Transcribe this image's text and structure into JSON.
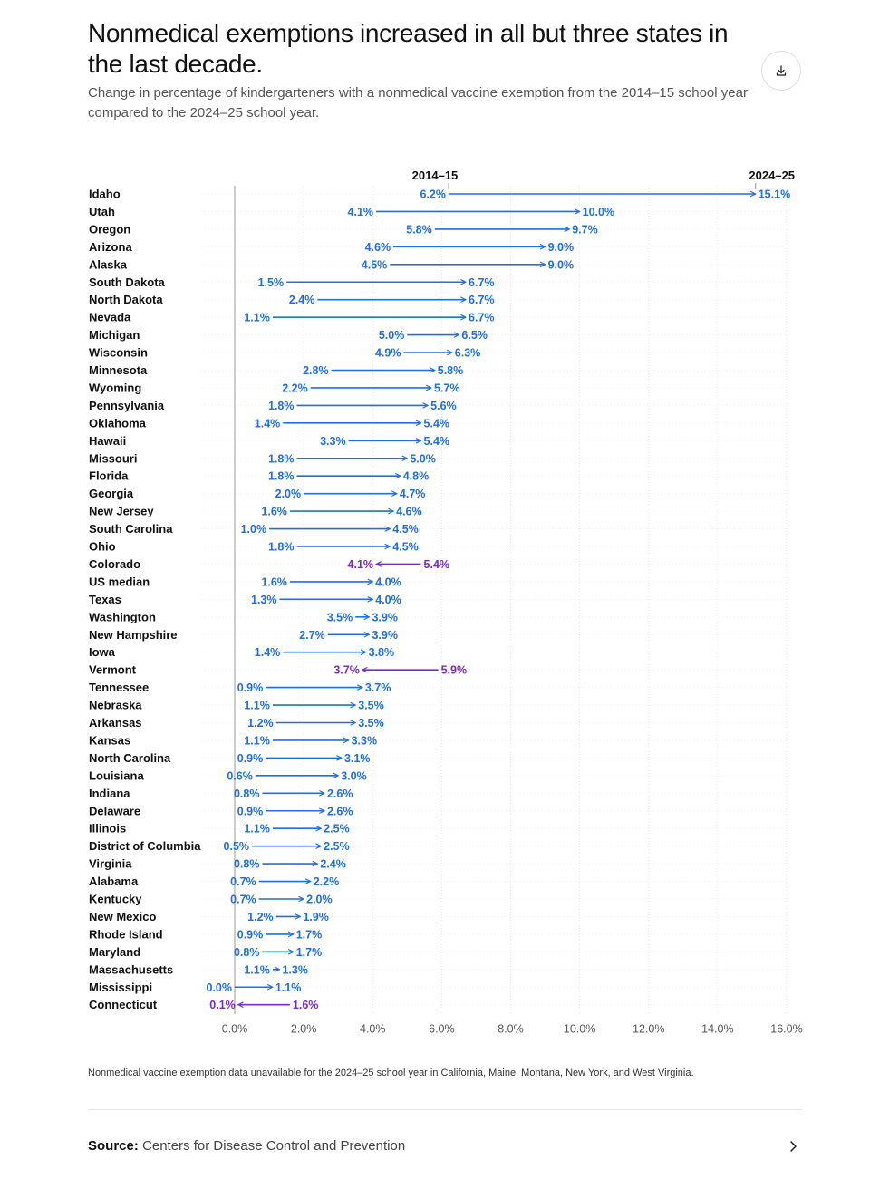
{
  "header": {
    "title": "Nonmedical exemptions increased in all but three states in the last decade.",
    "subtitle": "Change in percentage of kindergarteners with a nonmedical vaccine exemption from the 2014–15 school year compared to the 2024–25 school year.",
    "download_icon": "download-icon"
  },
  "colors": {
    "increase": "#1F6FE0",
    "decrease": "#7B2AC4",
    "axis": "#BBBBBB",
    "grid": "#E6E6E6"
  },
  "chart_data": {
    "type": "dumbbell",
    "start_label": "2014–15",
    "end_label": "2024–25",
    "xlim": [
      0,
      16
    ],
    "ticks": [
      0,
      2,
      4,
      6,
      8,
      10,
      12,
      14,
      16
    ],
    "tick_labels": [
      "0.0%",
      "2.0%",
      "4.0%",
      "6.0%",
      "8.0%",
      "10.0%",
      "12.0%",
      "14.0%",
      "16.0%"
    ],
    "rows": [
      {
        "name": "Idaho",
        "start": 6.2,
        "end": 15.1
      },
      {
        "name": "Utah",
        "start": 4.1,
        "end": 10.0
      },
      {
        "name": "Oregon",
        "start": 5.8,
        "end": 9.7
      },
      {
        "name": "Arizona",
        "start": 4.6,
        "end": 9.0
      },
      {
        "name": "Alaska",
        "start": 4.5,
        "end": 9.0
      },
      {
        "name": "South Dakota",
        "start": 1.5,
        "end": 6.7
      },
      {
        "name": "North Dakota",
        "start": 2.4,
        "end": 6.7
      },
      {
        "name": "Nevada",
        "start": 1.1,
        "end": 6.7
      },
      {
        "name": "Michigan",
        "start": 5.0,
        "end": 6.5
      },
      {
        "name": "Wisconsin",
        "start": 4.9,
        "end": 6.3
      },
      {
        "name": "Minnesota",
        "start": 2.8,
        "end": 5.8
      },
      {
        "name": "Wyoming",
        "start": 2.2,
        "end": 5.7
      },
      {
        "name": "Pennsylvania",
        "start": 1.8,
        "end": 5.6
      },
      {
        "name": "Oklahoma",
        "start": 1.4,
        "end": 5.4
      },
      {
        "name": "Hawaii",
        "start": 3.3,
        "end": 5.4
      },
      {
        "name": "Missouri",
        "start": 1.8,
        "end": 5.0
      },
      {
        "name": "Florida",
        "start": 1.8,
        "end": 4.8
      },
      {
        "name": "Georgia",
        "start": 2.0,
        "end": 4.7
      },
      {
        "name": "New Jersey",
        "start": 1.6,
        "end": 4.6
      },
      {
        "name": "South Carolina",
        "start": 1.0,
        "end": 4.5
      },
      {
        "name": "Ohio",
        "start": 1.8,
        "end": 4.5
      },
      {
        "name": "Colorado",
        "start": 5.4,
        "end": 4.1
      },
      {
        "name": "US median",
        "start": 1.6,
        "end": 4.0
      },
      {
        "name": "Texas",
        "start": 1.3,
        "end": 4.0
      },
      {
        "name": "Washington",
        "start": 3.5,
        "end": 3.9
      },
      {
        "name": "New Hampshire",
        "start": 2.7,
        "end": 3.9
      },
      {
        "name": "Iowa",
        "start": 1.4,
        "end": 3.8
      },
      {
        "name": "Vermont",
        "start": 5.9,
        "end": 3.7
      },
      {
        "name": "Tennessee",
        "start": 0.9,
        "end": 3.7
      },
      {
        "name": "Nebraska",
        "start": 1.1,
        "end": 3.5
      },
      {
        "name": "Arkansas",
        "start": 1.2,
        "end": 3.5
      },
      {
        "name": "Kansas",
        "start": 1.1,
        "end": 3.3
      },
      {
        "name": "North Carolina",
        "start": 0.9,
        "end": 3.1
      },
      {
        "name": "Louisiana",
        "start": 0.6,
        "end": 3.0
      },
      {
        "name": "Indiana",
        "start": 0.8,
        "end": 2.6
      },
      {
        "name": "Delaware",
        "start": 0.9,
        "end": 2.6
      },
      {
        "name": "Illinois",
        "start": 1.1,
        "end": 2.5
      },
      {
        "name": "District of Columbia",
        "start": 0.5,
        "end": 2.5
      },
      {
        "name": "Virginia",
        "start": 0.8,
        "end": 2.4
      },
      {
        "name": "Alabama",
        "start": 0.7,
        "end": 2.2
      },
      {
        "name": "Kentucky",
        "start": 0.7,
        "end": 2.0
      },
      {
        "name": "New Mexico",
        "start": 1.2,
        "end": 1.9
      },
      {
        "name": "Rhode Island",
        "start": 0.9,
        "end": 1.7
      },
      {
        "name": "Maryland",
        "start": 0.8,
        "end": 1.7
      },
      {
        "name": "Massachusetts",
        "start": 1.1,
        "end": 1.3
      },
      {
        "name": "Mississippi",
        "start": 0.0,
        "end": 1.1
      },
      {
        "name": "Connecticut",
        "start": 1.6,
        "end": 0.1
      }
    ]
  },
  "footnote": "Nonmedical vaccine exemption data unavailable for the 2024–25 school year in California, Maine, Montana, New York, and West Virginia.",
  "source": {
    "label": "Source:",
    "text": "Centers for Disease Control and Prevention",
    "chevron_icon": "chevron-right-icon"
  }
}
